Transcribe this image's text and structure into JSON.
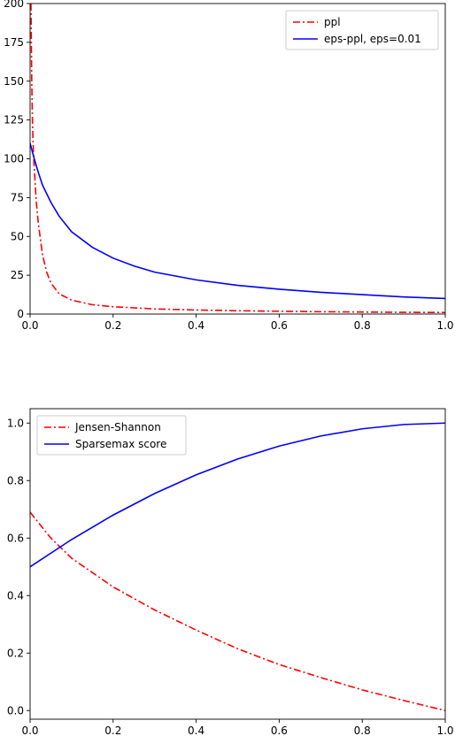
{
  "chart_data": [
    {
      "type": "line",
      "xlim": [
        0,
        1.0
      ],
      "ylim": [
        0,
        200
      ],
      "xticks": [
        "0.0",
        "0.2",
        "0.4",
        "0.6",
        "0.8",
        "1.0"
      ],
      "yticks": [
        "0",
        "25",
        "50",
        "75",
        "100",
        "125",
        "150",
        "175",
        "200"
      ],
      "grid": false,
      "legend_position": "top-right",
      "series": [
        {
          "name": "ppl",
          "color": "#ff0000",
          "style": "dash-dot",
          "x": [
            0.002,
            0.004,
            0.006,
            0.008,
            0.01,
            0.015,
            0.02,
            0.03,
            0.04,
            0.05,
            0.07,
            0.1,
            0.15,
            0.2,
            0.3,
            0.4,
            0.5,
            0.6,
            0.7,
            0.8,
            0.9,
            1.0
          ],
          "y": [
            200,
            150,
            120,
            105,
            94,
            72,
            58,
            38,
            27,
            20,
            13,
            9,
            6,
            4.7,
            3.3,
            2.6,
            2.1,
            1.8,
            1.5,
            1.3,
            1.1,
            1.0
          ]
        },
        {
          "name": "eps-ppl, eps=0.01",
          "color": "#0000ff",
          "style": "solid",
          "x": [
            0,
            0.01,
            0.02,
            0.03,
            0.05,
            0.07,
            0.1,
            0.15,
            0.2,
            0.25,
            0.3,
            0.4,
            0.5,
            0.6,
            0.7,
            0.8,
            0.9,
            1.0
          ],
          "y": [
            110,
            100,
            91,
            83,
            72,
            63,
            53,
            43,
            36,
            31,
            27,
            22,
            18.5,
            16,
            14,
            12.5,
            11,
            10
          ]
        }
      ]
    },
    {
      "type": "line",
      "xlim": [
        0,
        1.0
      ],
      "ylim": [
        -0.03,
        1.05
      ],
      "xticks": [
        "0.0",
        "0.2",
        "0.4",
        "0.6",
        "0.8",
        "1.0"
      ],
      "yticks": [
        "0.0",
        "0.2",
        "0.4",
        "0.6",
        "0.8",
        "1.0"
      ],
      "grid": false,
      "legend_position": "top-left",
      "series": [
        {
          "name": "Jensen-Shannon",
          "color": "#ff0000",
          "style": "dash-dot",
          "x": [
            0,
            0.05,
            0.1,
            0.2,
            0.3,
            0.4,
            0.5,
            0.6,
            0.7,
            0.8,
            0.9,
            1.0
          ],
          "y": [
            0.69,
            0.6,
            0.53,
            0.43,
            0.35,
            0.28,
            0.215,
            0.16,
            0.115,
            0.072,
            0.035,
            0.0
          ]
        },
        {
          "name": "Sparsemax score",
          "color": "#0000ff",
          "style": "solid",
          "x": [
            0,
            0.1,
            0.2,
            0.3,
            0.4,
            0.5,
            0.6,
            0.7,
            0.8,
            0.9,
            1.0
          ],
          "y": [
            0.5,
            0.595,
            0.68,
            0.755,
            0.82,
            0.875,
            0.92,
            0.955,
            0.98,
            0.995,
            1.0
          ]
        }
      ]
    }
  ]
}
